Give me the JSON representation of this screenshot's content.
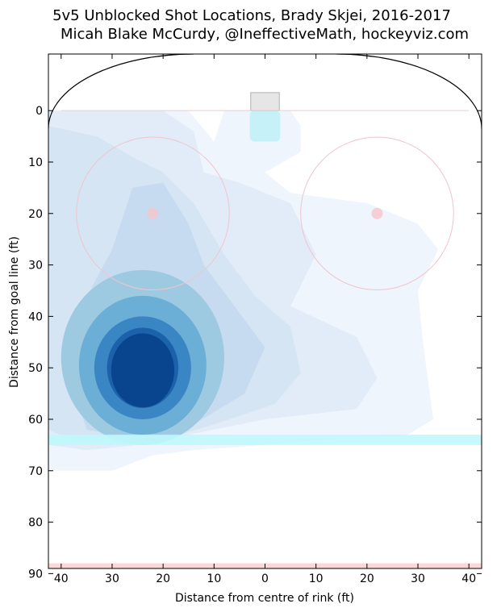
{
  "chart_data": {
    "type": "heatmap",
    "title": "5v5 Unblocked Shot Locations, Brady Skjei, 2016-2017",
    "subtitle": "Micah Blake McCurdy, @IneffectiveMath, hockeyviz.com",
    "xlabel": "Distance from centre of rink (ft)",
    "ylabel": "Distance from goal line (ft)",
    "xlim": [
      -42.5,
      42.5
    ],
    "ylim": [
      -11,
      89
    ],
    "x_ticks": [
      -40,
      -30,
      -20,
      -10,
      0,
      10,
      20,
      30,
      40
    ],
    "x_tick_labels": [
      "40",
      "30",
      "20",
      "10",
      "0",
      "10",
      "20",
      "30",
      "40"
    ],
    "y_ticks": [
      0,
      10,
      20,
      30,
      40,
      50,
      60,
      70,
      80,
      90
    ],
    "y_tick_labels": [
      "0",
      "10",
      "20",
      "30",
      "40",
      "50",
      "60",
      "70",
      "80",
      "90"
    ],
    "density_peaks": [
      {
        "x": -24,
        "y": 50,
        "level": "max"
      },
      {
        "x": -22,
        "y": 20,
        "level": "low"
      }
    ],
    "rink_features": {
      "goal_line_y": 0,
      "faceoff_circles": [
        {
          "x": -22,
          "y": 20,
          "r": 15
        },
        {
          "x": 22,
          "y": 20,
          "r": 15
        }
      ],
      "blue_line_y": 64,
      "centre_line_y": 89,
      "crease_color": "#bff0f8",
      "blue_line_color": "#bff8fc",
      "red_line_color": "#ffd6d6"
    },
    "colors": [
      "#eff5fd",
      "#e2ecf8",
      "#d6e5f4",
      "#c6dbef",
      "#9ecae1",
      "#6baed6",
      "#3a85c4",
      "#1c62ab",
      "#08458e"
    ]
  }
}
